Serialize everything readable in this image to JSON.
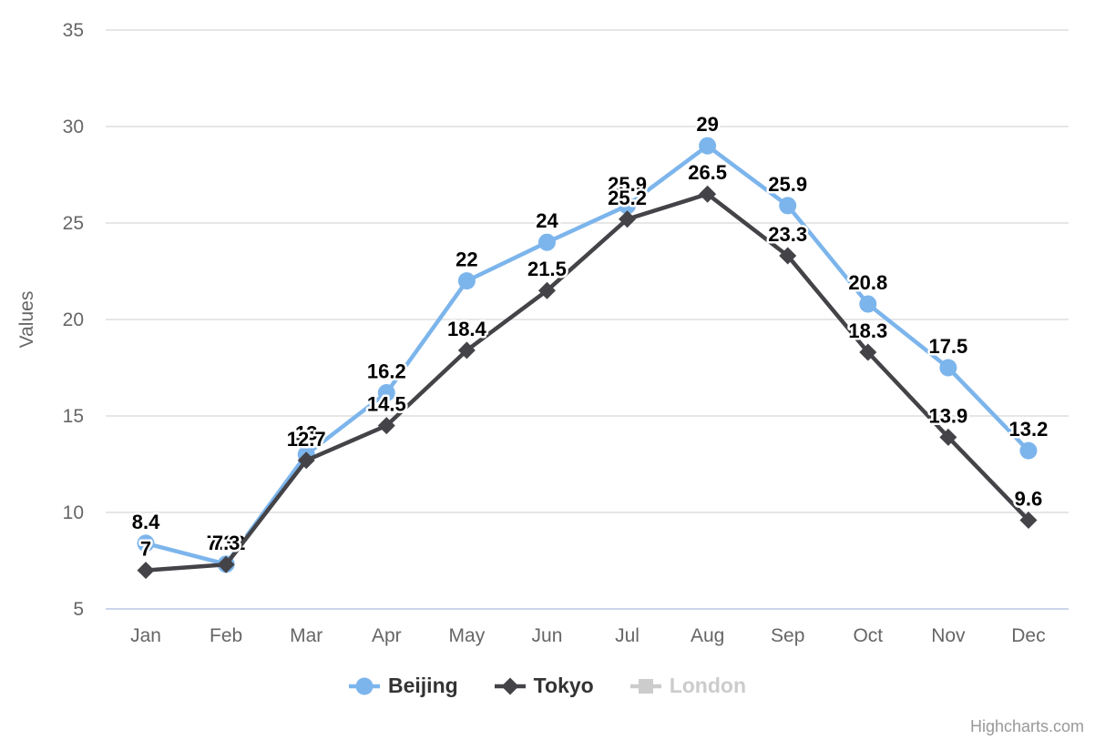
{
  "chart_data": {
    "type": "line",
    "categories": [
      "Jan",
      "Feb",
      "Mar",
      "Apr",
      "May",
      "Jun",
      "Jul",
      "Aug",
      "Sep",
      "Oct",
      "Nov",
      "Dec"
    ],
    "series": [
      {
        "name": "Beijing",
        "color": "#7cb5ec",
        "marker": "circle",
        "visible": true,
        "values": [
          8.4,
          7.32,
          13,
          16.2,
          22,
          24,
          25.9,
          29,
          25.9,
          20.8,
          17.5,
          13.2
        ]
      },
      {
        "name": "Tokyo",
        "color": "#434348",
        "marker": "diamond",
        "visible": true,
        "values": [
          7,
          7.3,
          12.7,
          14.5,
          18.4,
          21.5,
          25.2,
          26.5,
          23.3,
          18.3,
          13.9,
          9.6
        ]
      },
      {
        "name": "London",
        "color": "#cccccc",
        "marker": "square",
        "visible": false,
        "values": []
      }
    ],
    "ylabel": "Values",
    "yticks": [
      5,
      10,
      15,
      20,
      25,
      30,
      35
    ],
    "ylim": [
      5,
      35
    ],
    "grid": true,
    "data_labels": true,
    "legend_position": "bottom",
    "colors": {
      "grid_line": "#e6e6e6",
      "axis_line": "#ccd6eb",
      "tick_label": "#666666",
      "axis_title": "#666666",
      "data_label": "#000000",
      "data_label_outline": "#ffffff",
      "legend_text": "#333333",
      "legend_disabled": "#cccccc",
      "credits_text": "#999999"
    }
  },
  "credits": {
    "text": "Highcharts.com"
  }
}
